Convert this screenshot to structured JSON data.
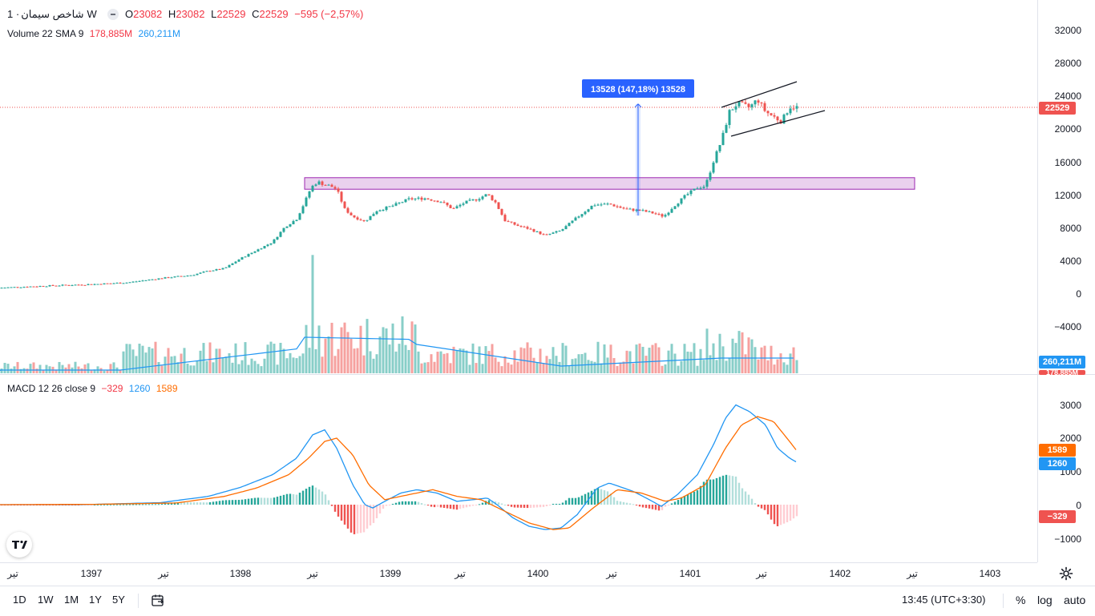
{
  "legend": {
    "symbol": "شاخص سیمان",
    "interval": "1W",
    "ohlc": {
      "o_label": "O",
      "o": "23082",
      "h_label": "H",
      "h": "23082",
      "l_label": "L",
      "l": "22529",
      "c_label": "C",
      "c": "22529",
      "change": "−595 (−2,57%)"
    },
    "volume": {
      "name": "Volume 22 SMA 9",
      "v1": "178,885M",
      "v2": "260,211M"
    },
    "macd": {
      "name": "MACD 12 26 close 9",
      "hist": "−329",
      "macd": "1260",
      "signal": "1589"
    }
  },
  "price_axis": {
    "ticks": [
      "32000",
      "28000",
      "24000",
      "20000",
      "16000",
      "12000",
      "8000",
      "4000",
      "0",
      "−4000"
    ],
    "last_price_tag": "22529",
    "volume_tag": "260,211M",
    "volume_tag2": "178,885M"
  },
  "macd_axis": {
    "ticks": [
      "3000",
      "2000",
      "1000",
      "0",
      "−1000"
    ],
    "signal_tag": "1589",
    "macd_tag": "1260",
    "hist_tag": "−329"
  },
  "measure_label": "13528 (147,18%) 13528",
  "time_axis": {
    "labels": [
      "تیر",
      "1397",
      "تیر",
      "1398",
      "تیر",
      "1399",
      "تیر",
      "1400",
      "تیر",
      "1401",
      "تیر",
      "1402",
      "تیر",
      "1403"
    ]
  },
  "bottom_bar": {
    "timeframes": [
      "1D",
      "1W",
      "1M",
      "1Y",
      "5Y"
    ],
    "clock": "13:45 (UTC+3:30)",
    "percent": "%",
    "log": "log",
    "auto": "auto"
  },
  "colors": {
    "up": "#26a69a",
    "down": "#ef5350",
    "macd": "#2196f3",
    "signal": "#ff6d00",
    "zone": "#e1bee7",
    "measure": "#2962ff"
  },
  "chart_data": {
    "type": "candlestick",
    "price_range": [
      -6000,
      34000
    ],
    "last_price": 22529,
    "zone": [
      12600,
      14000
    ],
    "measure": {
      "from": 9400,
      "to": 22930,
      "delta": 13528
    },
    "channel_upper": [
      [
        -1,
        22800
      ],
      [
        1,
        26000
      ]
    ],
    "channel_lower": [
      [
        -1,
        19000
      ],
      [
        1,
        22200
      ]
    ]
  }
}
